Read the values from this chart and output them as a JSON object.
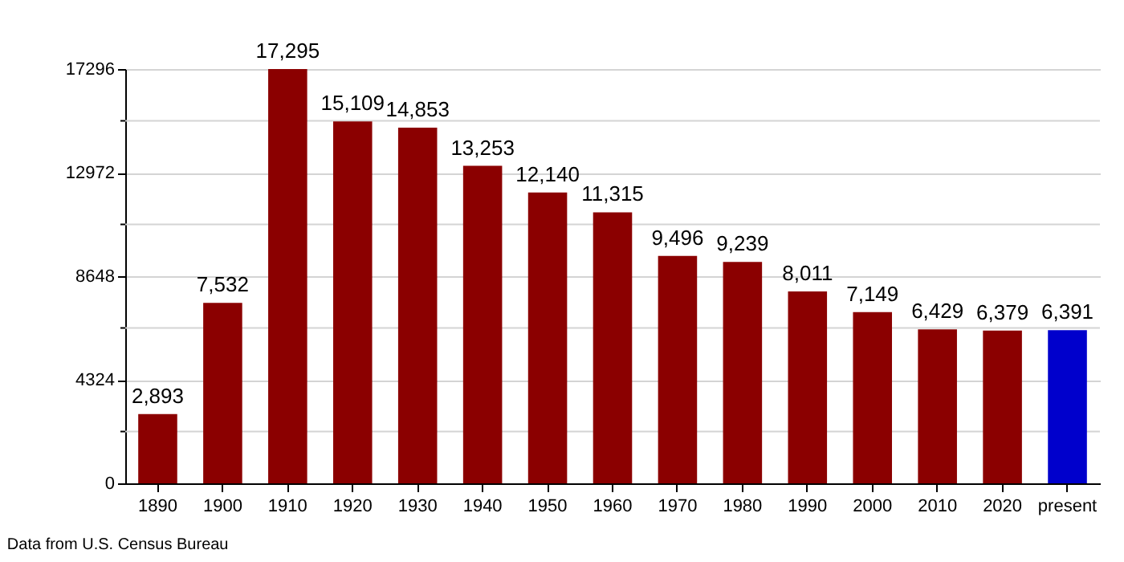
{
  "chart_data": {
    "type": "bar",
    "categories": [
      "1890",
      "1900",
      "1910",
      "1920",
      "1930",
      "1940",
      "1950",
      "1960",
      "1970",
      "1980",
      "1990",
      "2000",
      "2010",
      "2020",
      "present"
    ],
    "values": [
      2893,
      7532,
      17295,
      15109,
      14853,
      13253,
      12140,
      11315,
      9496,
      9239,
      8011,
      7149,
      6429,
      6379,
      6391
    ],
    "colors": [
      "#8b0000",
      "#8b0000",
      "#8b0000",
      "#8b0000",
      "#8b0000",
      "#8b0000",
      "#8b0000",
      "#8b0000",
      "#8b0000",
      "#8b0000",
      "#8b0000",
      "#8b0000",
      "#8b0000",
      "#8b0000",
      "#0000cc"
    ],
    "value_labels": [
      "2,893",
      "7,532",
      "17,295",
      "15,109",
      "14,853",
      "13,253",
      "12,140",
      "11,315",
      "9,496",
      "9,239",
      "8,011",
      "7,149",
      "6,429",
      "6,379",
      "6,391"
    ],
    "ylim": [
      0,
      17296
    ],
    "yticks": [
      0,
      {
        "value": 2162,
        "label": null
      },
      4324,
      {
        "value": 6486,
        "label": null
      },
      8648,
      {
        "value": 10810,
        "label": null
      },
      12972,
      {
        "value": 15134,
        "label": null
      },
      17296
    ],
    "grid": "y",
    "annotations": [
      "Data from U.S. Census Bureau"
    ]
  }
}
